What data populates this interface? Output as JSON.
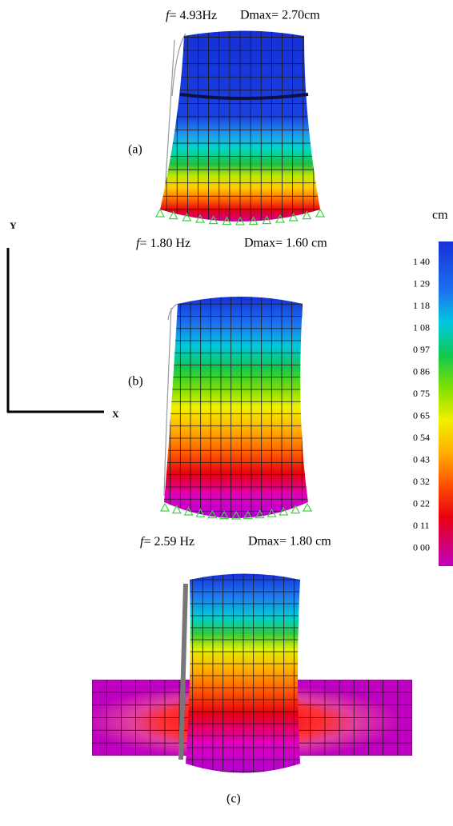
{
  "panels": [
    {
      "frequency": {
        "symbol": "f",
        "text": "= 4.93Hz"
      },
      "dmax": "Dmax= 2.70cm",
      "label": "(a)"
    },
    {
      "frequency": {
        "symbol": "f",
        "text": "= 1.80 Hz"
      },
      "dmax": "Dmax= 1.60 cm",
      "label": "(b)"
    },
    {
      "frequency": {
        "symbol": "f",
        "text": "= 2.59 Hz"
      },
      "dmax": "Dmax= 1.80 cm",
      "label": "(c)"
    }
  ],
  "axes": {
    "y": "Y",
    "x": "X"
  },
  "colorbar": {
    "unit": "cm",
    "labels": [
      "1 40",
      "1 29",
      "1 18",
      "1 08",
      "0 97",
      "0 86",
      "0 75",
      "0 65",
      "0 54",
      "0 43",
      "0 32",
      "0 22",
      "0 11",
      "0 00"
    ]
  }
}
